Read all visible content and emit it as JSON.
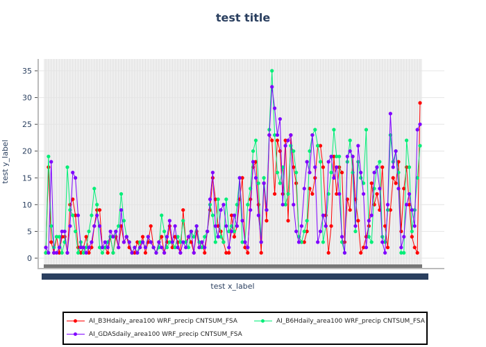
{
  "chart_data": {
    "type": "line",
    "title": "test title",
    "xlabel": "test x_label",
    "ylabel": "test y_label",
    "ylim": [
      -2,
      37
    ],
    "yticks": [
      0,
      5,
      10,
      15,
      20,
      25,
      30,
      35
    ],
    "grid": true,
    "legend_position": "bottom",
    "series": [
      {
        "name": "AI_B3Hdaily_area100 WRF_precip CNTSUM_FSA",
        "color": "#ff0000",
        "values": [
          1,
          17,
          3,
          1,
          4,
          1,
          4,
          4,
          1,
          10,
          11,
          8,
          2,
          1,
          2,
          4,
          1,
          2,
          6,
          9,
          9,
          2,
          2,
          1,
          4,
          1,
          4,
          2,
          6,
          3,
          4,
          2,
          1,
          1,
          3,
          2,
          4,
          1,
          3,
          6,
          2,
          1,
          3,
          4,
          1,
          3,
          6,
          2,
          4,
          3,
          1,
          9,
          3,
          4,
          3,
          1,
          5,
          2,
          3,
          1,
          5,
          9,
          15,
          11,
          6,
          5,
          3,
          1,
          1,
          8,
          4,
          6,
          11,
          15,
          2,
          1,
          11,
          17,
          18,
          10,
          1,
          14,
          7,
          23,
          22,
          12,
          22,
          20,
          12,
          22,
          7,
          23,
          17,
          14,
          4,
          3,
          3,
          5,
          13,
          12,
          15,
          21,
          21,
          17,
          8,
          1,
          6,
          19,
          12,
          17,
          16,
          3,
          11,
          9,
          19,
          11,
          7,
          1,
          2,
          4,
          6,
          14,
          10,
          12,
          9,
          17,
          6,
          2,
          9,
          15,
          14,
          18,
          5,
          13,
          17,
          10,
          4,
          2,
          1,
          29
        ]
      },
      {
        "name": "AI_B6Hdaily_area100 WRF_precip CNTSUM_FSA",
        "color": "#00ee77",
        "values": [
          1,
          19,
          6,
          2,
          4,
          4,
          1,
          3,
          17,
          9,
          8,
          5,
          1,
          3,
          1,
          2,
          5,
          8,
          13,
          10,
          2,
          1,
          2,
          3,
          4,
          1,
          5,
          6,
          12,
          7,
          4,
          3,
          1,
          2,
          1,
          3,
          3,
          2,
          4,
          3,
          2,
          1,
          2,
          8,
          5,
          2,
          3,
          3,
          2,
          4,
          3,
          7,
          3,
          2,
          5,
          4,
          6,
          3,
          2,
          4,
          5,
          10,
          8,
          3,
          11,
          4,
          3,
          11,
          5,
          6,
          5,
          10,
          15,
          3,
          3,
          10,
          13,
          20,
          22,
          14,
          3,
          15,
          9,
          24,
          35,
          23,
          16,
          14,
          17,
          10,
          12,
          21,
          20,
          16,
          4,
          3,
          5,
          7,
          20,
          23,
          24,
          21,
          18,
          3,
          6,
          12,
          16,
          24,
          19,
          19,
          3,
          1,
          18,
          22,
          16,
          5,
          18,
          15,
          14,
          24,
          4,
          3,
          13,
          17,
          18,
          4,
          3,
          9,
          23,
          18,
          20,
          16,
          1,
          1,
          22,
          17,
          5,
          9,
          15,
          21
        ]
      },
      {
        "name": "AI_GDASdaily_area100 WRF_precip CNTSUM_FSA",
        "color": "#7f00ff",
        "values": [
          2,
          1,
          18,
          1,
          1,
          2,
          5,
          5,
          1,
          6,
          16,
          15,
          8,
          2,
          2,
          1,
          2,
          3,
          6,
          8,
          6,
          2,
          3,
          2,
          5,
          4,
          5,
          2,
          9,
          3,
          4,
          3,
          1,
          2,
          1,
          2,
          3,
          2,
          4,
          3,
          2,
          1,
          3,
          2,
          1,
          4,
          7,
          3,
          6,
          2,
          1,
          3,
          2,
          4,
          5,
          1,
          6,
          2,
          3,
          2,
          5,
          11,
          16,
          6,
          4,
          9,
          10,
          6,
          2,
          5,
          8,
          6,
          15,
          7,
          3,
          2,
          9,
          18,
          15,
          8,
          3,
          14,
          9,
          23,
          32,
          28,
          23,
          26,
          10,
          21,
          22,
          23,
          10,
          5,
          3,
          6,
          13,
          18,
          16,
          23,
          17,
          3,
          5,
          8,
          6,
          18,
          19,
          15,
          17,
          12,
          4,
          1,
          19,
          20,
          19,
          6,
          21,
          16,
          12,
          2,
          7,
          8,
          16,
          17,
          13,
          3,
          1,
          10,
          27,
          17,
          20,
          13,
          2,
          4,
          10,
          12,
          9,
          6,
          24,
          25
        ]
      }
    ]
  }
}
